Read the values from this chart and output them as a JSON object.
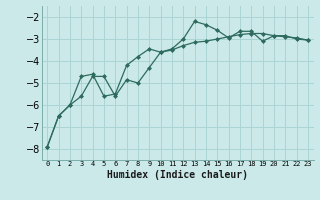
{
  "xlabel": "Humidex (Indice chaleur)",
  "ylabel": "",
  "background_color": "#cce9e9",
  "grid_color": "#aad4d4",
  "line_color": "#2d6b5e",
  "xlim": [
    -0.5,
    23.5
  ],
  "ylim": [
    -8.5,
    -1.5
  ],
  "yticks": [
    -8,
    -7,
    -6,
    -5,
    -4,
    -3,
    -2
  ],
  "xticks": [
    0,
    1,
    2,
    3,
    4,
    5,
    6,
    7,
    8,
    9,
    10,
    11,
    12,
    13,
    14,
    15,
    16,
    17,
    18,
    19,
    20,
    21,
    22,
    23
  ],
  "line1_x": [
    0,
    1,
    2,
    3,
    4,
    5,
    6,
    7,
    8,
    9,
    10,
    11,
    12,
    13,
    14,
    15,
    16,
    17,
    18,
    19,
    20,
    21,
    22,
    23
  ],
  "line1_y": [
    -7.9,
    -6.5,
    -6.0,
    -4.7,
    -4.6,
    -5.6,
    -5.5,
    -4.2,
    -3.8,
    -3.45,
    -3.6,
    -3.45,
    -3.0,
    -2.2,
    -2.35,
    -2.6,
    -2.95,
    -2.65,
    -2.65,
    -3.1,
    -2.85,
    -2.85,
    -3.0,
    -3.05
  ],
  "line2_x": [
    0,
    1,
    2,
    3,
    4,
    5,
    6,
    7,
    8,
    9,
    10,
    11,
    12,
    13,
    14,
    15,
    16,
    17,
    18,
    19,
    20,
    21,
    22,
    23
  ],
  "line2_y": [
    -7.9,
    -6.5,
    -6.0,
    -5.6,
    -4.7,
    -4.7,
    -5.6,
    -4.85,
    -5.0,
    -4.3,
    -3.6,
    -3.5,
    -3.3,
    -3.15,
    -3.1,
    -3.0,
    -2.9,
    -2.8,
    -2.75,
    -2.75,
    -2.85,
    -2.9,
    -2.95,
    -3.05
  ],
  "marker": "D",
  "markersize": 2.0,
  "linewidth": 0.9,
  "fontsize_xlabel": 7,
  "fontsize_ytick": 7,
  "fontsize_xtick": 5.0,
  "spine_color": "#7aadaa"
}
